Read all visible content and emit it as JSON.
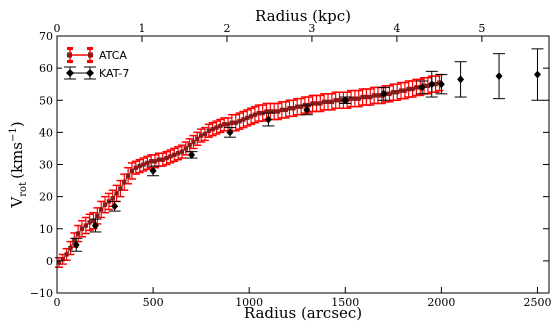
{
  "chart_data": {
    "type": "scatter",
    "xlabel": "Radius (arcsec)",
    "x2label": "Radius (kpc)",
    "ylabel_main": "V",
    "ylabel_sub": "rot",
    "ylabel_unit": "(kms",
    "ylabel_exp": "−1",
    "ylabel_close": ")",
    "xlim": [
      0,
      2560
    ],
    "ylim": [
      -10,
      70
    ],
    "x2lim": [
      0,
      5.79
    ],
    "xticks": [
      0,
      500,
      1000,
      1500,
      2000,
      2500
    ],
    "x2ticks": [
      0,
      1,
      2,
      3,
      4,
      5
    ],
    "yticks": [
      -10,
      0,
      10,
      20,
      30,
      40,
      50,
      60,
      70
    ],
    "grid": false,
    "legend_position": "top-left",
    "series": [
      {
        "name": "ATCA",
        "color": "#ff0000",
        "marker_color": "#8b1a1a",
        "points": [
          [
            10,
            -0.5,
            1.5
          ],
          [
            30,
            0.5,
            1.5
          ],
          [
            50,
            2,
            1.8
          ],
          [
            70,
            4,
            2
          ],
          [
            90,
            6.5,
            2.2
          ],
          [
            110,
            8.5,
            2.5
          ],
          [
            130,
            10,
            2.5
          ],
          [
            150,
            11,
            2.5
          ],
          [
            170,
            12,
            2.5
          ],
          [
            190,
            12.5,
            2.5
          ],
          [
            210,
            14,
            2.5
          ],
          [
            230,
            16,
            2.5
          ],
          [
            250,
            17.5,
            2.5
          ],
          [
            270,
            18.5,
            2.5
          ],
          [
            290,
            19.5,
            2.5
          ],
          [
            310,
            21,
            2.5
          ],
          [
            330,
            22.5,
            2.5
          ],
          [
            350,
            24.5,
            2.5
          ],
          [
            370,
            26.5,
            2.5
          ],
          [
            390,
            28,
            2.5
          ],
          [
            410,
            29,
            2
          ],
          [
            430,
            29.5,
            2
          ],
          [
            450,
            30,
            2
          ],
          [
            470,
            30.5,
            2
          ],
          [
            490,
            31,
            2
          ],
          [
            510,
            31,
            2
          ],
          [
            530,
            31.5,
            2
          ],
          [
            550,
            31.5,
            2
          ],
          [
            570,
            32,
            2
          ],
          [
            590,
            32.5,
            2
          ],
          [
            610,
            33,
            2
          ],
          [
            630,
            33.5,
            2
          ],
          [
            650,
            34,
            2
          ],
          [
            670,
            35,
            2
          ],
          [
            690,
            36,
            2
          ],
          [
            710,
            37,
            2
          ],
          [
            730,
            38,
            2
          ],
          [
            750,
            39,
            2
          ],
          [
            770,
            39.5,
            2
          ],
          [
            790,
            40.5,
            2
          ],
          [
            810,
            41,
            2
          ],
          [
            830,
            41.5,
            2
          ],
          [
            850,
            42,
            2
          ],
          [
            870,
            42.5,
            2
          ],
          [
            890,
            42.5,
            2
          ],
          [
            910,
            43,
            2.5
          ],
          [
            930,
            43,
            2.5
          ],
          [
            950,
            43.5,
            2.5
          ],
          [
            970,
            44,
            2.5
          ],
          [
            990,
            44.5,
            2.5
          ],
          [
            1010,
            45,
            2.5
          ],
          [
            1030,
            45.5,
            2.5
          ],
          [
            1050,
            46,
            2.5
          ],
          [
            1070,
            46,
            2.5
          ],
          [
            1090,
            46.5,
            2.5
          ],
          [
            1110,
            46.5,
            2.5
          ],
          [
            1130,
            46.5,
            2.5
          ],
          [
            1150,
            46.5,
            2.5
          ],
          [
            1170,
            47,
            2.5
          ],
          [
            1190,
            47,
            2.5
          ],
          [
            1210,
            47.5,
            2.5
          ],
          [
            1230,
            47.5,
            2.5
          ],
          [
            1250,
            48,
            2.5
          ],
          [
            1270,
            48,
            2.5
          ],
          [
            1290,
            48.5,
            2.5
          ],
          [
            1310,
            48.5,
            2.5
          ],
          [
            1330,
            49,
            2.5
          ],
          [
            1350,
            49,
            2.5
          ],
          [
            1370,
            49,
            2.5
          ],
          [
            1390,
            49.5,
            2.5
          ],
          [
            1410,
            49.5,
            2.5
          ],
          [
            1430,
            49.5,
            2.5
          ],
          [
            1450,
            50,
            2.5
          ],
          [
            1470,
            50,
            2.5
          ],
          [
            1490,
            50,
            2.5
          ],
          [
            1510,
            50,
            2.5
          ],
          [
            1530,
            50.5,
            2.5
          ],
          [
            1550,
            50.5,
            2.5
          ],
          [
            1570,
            50.5,
            2.5
          ],
          [
            1590,
            51,
            2.5
          ],
          [
            1610,
            51,
            2.5
          ],
          [
            1630,
            51,
            2.5
          ],
          [
            1650,
            51.5,
            2.5
          ],
          [
            1670,
            51.5,
            2.5
          ],
          [
            1690,
            51.5,
            2.5
          ],
          [
            1710,
            52,
            2.5
          ],
          [
            1730,
            52,
            2.5
          ],
          [
            1750,
            52.5,
            2.5
          ],
          [
            1770,
            52.5,
            2.5
          ],
          [
            1790,
            53,
            2.5
          ],
          [
            1810,
            53,
            2.5
          ],
          [
            1830,
            53.5,
            2.5
          ],
          [
            1850,
            53.5,
            2.5
          ],
          [
            1870,
            54,
            2.5
          ],
          [
            1890,
            54,
            2.5
          ],
          [
            1910,
            54.5,
            2.5
          ],
          [
            1930,
            54.5,
            2.5
          ],
          [
            1950,
            55,
            2.5
          ],
          [
            1970,
            55,
            2.5
          ],
          [
            1990,
            55.5,
            2.5
          ]
        ]
      },
      {
        "name": "KAT-7",
        "color": "#000000",
        "marker_color": "#000000",
        "points": [
          [
            100,
            5,
            2
          ],
          [
            200,
            11,
            2
          ],
          [
            300,
            17,
            1.5
          ],
          [
            500,
            28,
            1.5
          ],
          [
            700,
            33,
            1
          ],
          [
            900,
            40,
            1.5
          ],
          [
            1100,
            44,
            2
          ],
          [
            1300,
            47,
            1.5
          ],
          [
            1500,
            50,
            1
          ],
          [
            1700,
            52,
            2
          ],
          [
            1900,
            54,
            2
          ],
          [
            1950,
            55,
            4
          ],
          [
            2000,
            55,
            3
          ],
          [
            2100,
            56.5,
            5.5
          ],
          [
            2300,
            57.5,
            7
          ],
          [
            2500,
            58,
            8
          ]
        ]
      }
    ]
  }
}
